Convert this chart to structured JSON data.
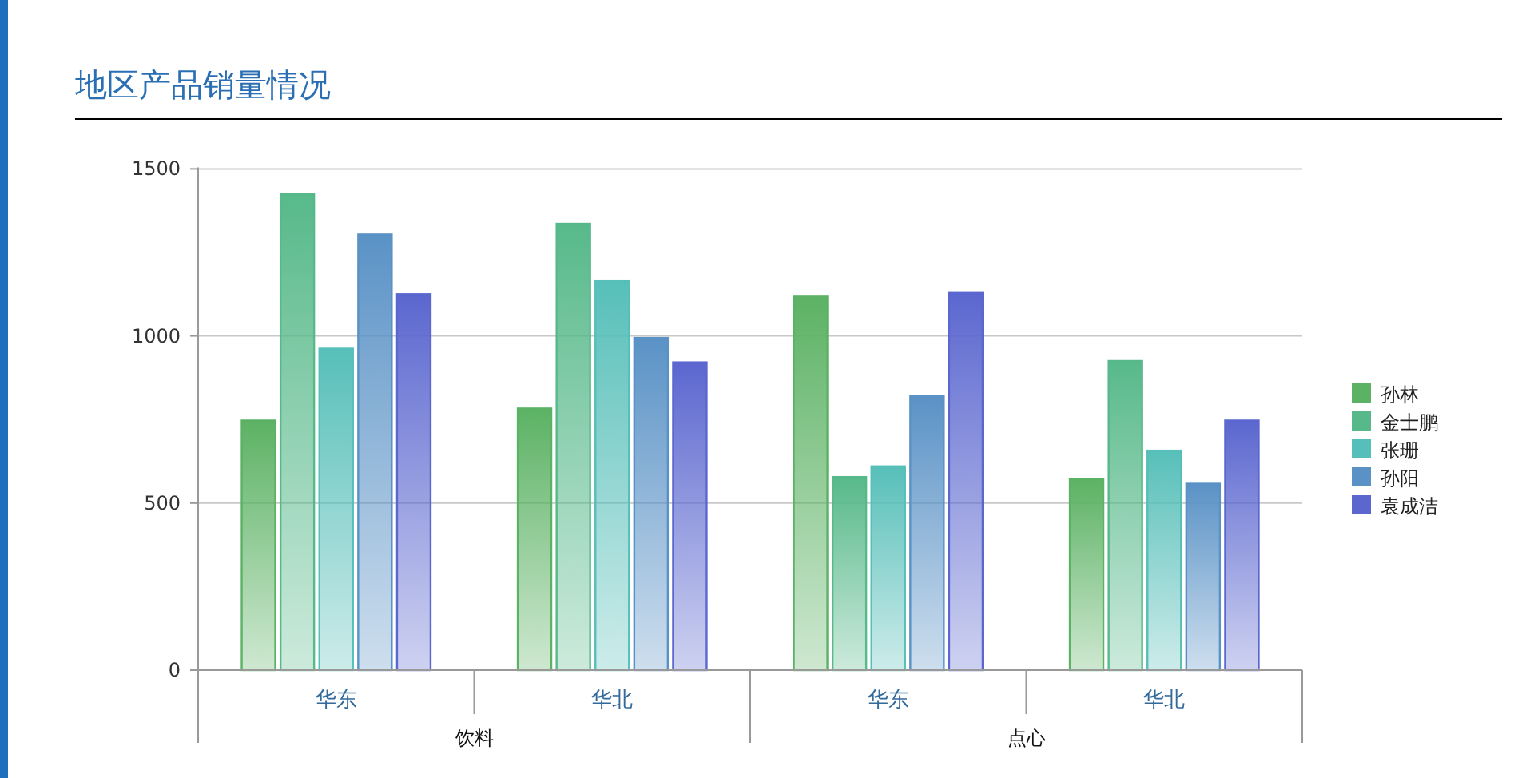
{
  "chart_data": {
    "type": "bar",
    "title": "地区产品销量情况",
    "categories": [
      "华东",
      "华北",
      "华东",
      "华北"
    ],
    "annotations": [
      "饮料",
      "点心"
    ],
    "series": [
      {
        "name": "孙林",
        "color": "#5cb264",
        "values": [
          747,
          783,
          1120,
          573
        ]
      },
      {
        "name": "金士鹏",
        "color": "#57b98a",
        "values": [
          1425,
          1336,
          578,
          925
        ]
      },
      {
        "name": "张珊",
        "color": "#57bfb9",
        "values": [
          962,
          1166,
          610,
          657
        ]
      },
      {
        "name": "孙阳",
        "color": "#5a92c6",
        "values": [
          1304,
          994,
          820,
          558
        ]
      },
      {
        "name": "袁成洁",
        "color": "#5b67cf",
        "values": [
          1125,
          921,
          1131,
          747
        ]
      }
    ],
    "ylim": [
      0,
      1500
    ],
    "yticks": [
      0,
      500,
      1000,
      1500
    ],
    "grid": "y",
    "legend": "right"
  }
}
